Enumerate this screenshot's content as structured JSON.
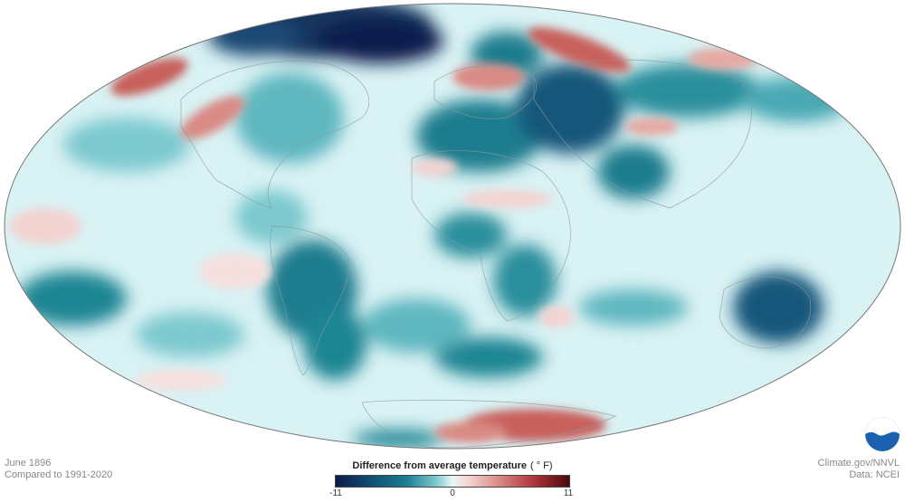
{
  "map": {
    "projection": "Mollweide world",
    "colors": {
      "ocean_base": "#d6f1f3",
      "cold_strong": "#0b1b4d",
      "cold": "#1a7d8e",
      "cold_light": "#7cc9cf",
      "neutral": "#eaf8f8",
      "warm_light": "#f3d3d0",
      "warm": "#d98a84",
      "warm_strong": "#b0333a",
      "outline": "#777777"
    }
  },
  "info": {
    "date": "June 1896",
    "baseline": "Compared to 1991-2020"
  },
  "legend": {
    "title": "Difference from average temperature",
    "unit": "( ° F)",
    "min_label": "-11",
    "mid_label": "0",
    "max_label": "11"
  },
  "credits": {
    "source": "Climate.gov/NNVL",
    "data": "Data: NCEI"
  },
  "logo": {
    "text": "NOAA"
  }
}
